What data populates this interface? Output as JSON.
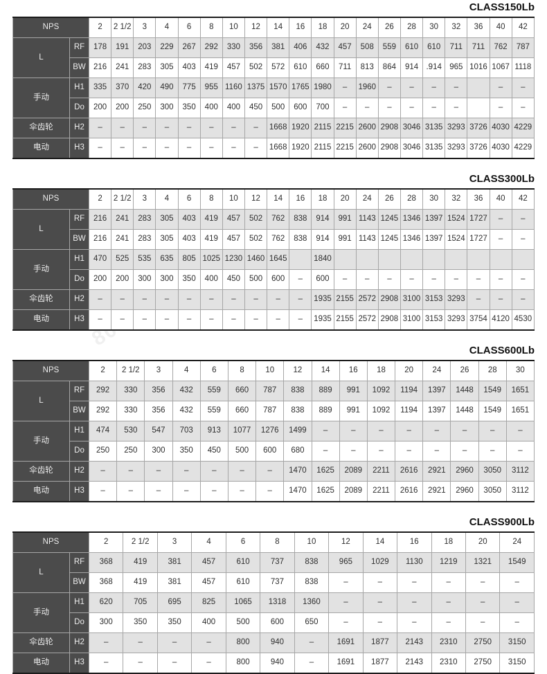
{
  "page": {
    "watermark_phone": "800-820-6570",
    "watermark_mark": "A"
  },
  "labels": {
    "corner": "NPS",
    "group_l": "L",
    "group_manual": "手动",
    "group_bevel_gear": "伞齿轮",
    "group_electric": "电动"
  },
  "colors": {
    "header_dark": "#4b4b4b",
    "row_shade": "#e2e2e2",
    "row_plain": "#ffffff",
    "border": "#a6a6a6",
    "outer_border": "#1b1b1b"
  },
  "chart_data": [
    {
      "type": "table",
      "title": "CLASS150Lb",
      "columns_nps": [
        "2",
        "2 1/2",
        "3",
        "4",
        "6",
        "8",
        "10",
        "12",
        "14",
        "16",
        "18",
        "20",
        "24",
        "26",
        "28",
        "30",
        "32",
        "36",
        "40",
        "42"
      ],
      "rows": [
        {
          "group": "L",
          "label": "RF",
          "values": [
            "178",
            "191",
            "203",
            "229",
            "267",
            "292",
            "330",
            "356",
            "381",
            "406",
            "432",
            "457",
            "508",
            "559",
            "610",
            "610",
            "711",
            "711",
            "762",
            "787"
          ]
        },
        {
          "group": "L",
          "label": "BW",
          "values": [
            "216",
            "241",
            "283",
            "305",
            "403",
            "419",
            "457",
            "502",
            "572",
            "610",
            "660",
            "711",
            "813",
            "864",
            "914",
            ".914",
            "965",
            "1016",
            "1067",
            "1118"
          ]
        },
        {
          "group": "手动",
          "label": "H1",
          "values": [
            "335",
            "370",
            "420",
            "490",
            "775",
            "955",
            "1160",
            "1375",
            "1570",
            "1765",
            "1980",
            "–",
            "1960",
            "–",
            "–",
            "–",
            "–",
            "",
            "–",
            "–"
          ]
        },
        {
          "group": "手动",
          "label": "Do",
          "values": [
            "200",
            "200",
            "250",
            "300",
            "350",
            "400",
            "400",
            "450",
            "500",
            "600",
            "700",
            "–",
            "–",
            "–",
            "–",
            "–",
            "–",
            "",
            "–",
            "–"
          ]
        },
        {
          "group": "伞齿轮",
          "label": "H2",
          "values": [
            "–",
            "–",
            "–",
            "–",
            "–",
            "–",
            "–",
            "–",
            "1668",
            "1920",
            "2115",
            "2215",
            "2600",
            "2908",
            "3046",
            "3135",
            "3293",
            "3726",
            "4030",
            "4229"
          ]
        },
        {
          "group": "电动",
          "label": "H3",
          "values": [
            "–",
            "–",
            "–",
            "–",
            "–",
            "–",
            "–",
            "–",
            "1668",
            "1920",
            "2115",
            "2215",
            "2600",
            "2908",
            "3046",
            "3135",
            "3293",
            "3726",
            "4030",
            "4229"
          ]
        }
      ]
    },
    {
      "type": "table",
      "title": "CLASS300Lb",
      "columns_nps": [
        "2",
        "2 1/2",
        "3",
        "4",
        "6",
        "8",
        "10",
        "12",
        "14",
        "16",
        "18",
        "20",
        "24",
        "26",
        "28",
        "30",
        "32",
        "36",
        "40",
        "42"
      ],
      "rows": [
        {
          "group": "L",
          "label": "RF",
          "values": [
            "216",
            "241",
            "283",
            "305",
            "403",
            "419",
            "457",
            "502",
            "762",
            "838",
            "914",
            "991",
            "1143",
            "1245",
            "1346",
            "1397",
            "1524",
            "1727",
            "–",
            "–"
          ]
        },
        {
          "group": "L",
          "label": "BW",
          "values": [
            "216",
            "241",
            "283",
            "305",
            "403",
            "419",
            "457",
            "502",
            "762",
            "838",
            "914",
            "991",
            "1143",
            "1245",
            "1346",
            "1397",
            "1524",
            "1727",
            "–",
            "–"
          ]
        },
        {
          "group": "手动",
          "label": "H1",
          "values": [
            "470",
            "525",
            "535",
            "635",
            "805",
            "1025",
            "1230",
            "1460",
            "1645",
            "",
            "1840",
            "",
            "",
            "",
            "",
            "",
            "",
            "",
            "",
            ""
          ]
        },
        {
          "group": "手动",
          "label": "Do",
          "values": [
            "200",
            "200",
            "300",
            "300",
            "350",
            "400",
            "450",
            "500",
            "600",
            "–",
            "600",
            "–",
            "–",
            "–",
            "–",
            "–",
            "–",
            "–",
            "–",
            "–"
          ]
        },
        {
          "group": "伞齿轮",
          "label": "H2",
          "values": [
            "–",
            "–",
            "–",
            "–",
            "–",
            "–",
            "–",
            "–",
            "–",
            "–",
            "1935",
            "2155",
            "2572",
            "2908",
            "3100",
            "3153",
            "3293",
            "–",
            "–",
            "–"
          ]
        },
        {
          "group": "电动",
          "label": "H3",
          "values": [
            "–",
            "–",
            "–",
            "–",
            "–",
            "–",
            "–",
            "–",
            "–",
            "–",
            "1935",
            "2155",
            "2572",
            "2908",
            "3100",
            "3153",
            "3293",
            "3754",
            "4120",
            "4530"
          ]
        }
      ]
    },
    {
      "type": "table",
      "title": "CLASS600Lb",
      "columns_nps": [
        "2",
        "2 1/2",
        "3",
        "4",
        "6",
        "8",
        "10",
        "12",
        "14",
        "16",
        "18",
        "20",
        "24",
        "26",
        "28",
        "30"
      ],
      "rows": [
        {
          "group": "L",
          "label": "RF",
          "values": [
            "292",
            "330",
            "356",
            "432",
            "559",
            "660",
            "787",
            "838",
            "889",
            "991",
            "1092",
            "1194",
            "1397",
            "1448",
            "1549",
            "1651"
          ]
        },
        {
          "group": "L",
          "label": "BW",
          "values": [
            "292",
            "330",
            "356",
            "432",
            "559",
            "660",
            "787",
            "838",
            "889",
            "991",
            "1092",
            "1194",
            "1397",
            "1448",
            "1549",
            "1651"
          ]
        },
        {
          "group": "手动",
          "label": "H1",
          "values": [
            "474",
            "530",
            "547",
            "703",
            "913",
            "1077",
            "1276",
            "1499",
            "–",
            "–",
            "–",
            "–",
            "–",
            "–",
            "–",
            "–"
          ]
        },
        {
          "group": "手动",
          "label": "Do",
          "values": [
            "250",
            "250",
            "300",
            "350",
            "450",
            "500",
            "600",
            "680",
            "–",
            "–",
            "–",
            "–",
            "–",
            "–",
            "–",
            "–"
          ]
        },
        {
          "group": "伞齿轮",
          "label": "H2",
          "values": [
            "–",
            "–",
            "–",
            "–",
            "–",
            "–",
            "–",
            "1470",
            "1625",
            "2089",
            "2211",
            "2616",
            "2921",
            "2960",
            "3050",
            "3112"
          ]
        },
        {
          "group": "电动",
          "label": "H3",
          "values": [
            "–",
            "–",
            "–",
            "–",
            "–",
            "–",
            "–",
            "1470",
            "1625",
            "2089",
            "2211",
            "2616",
            "2921",
            "2960",
            "3050",
            "3112"
          ]
        }
      ]
    },
    {
      "type": "table",
      "title": "CLASS900Lb",
      "columns_nps": [
        "2",
        "2 1/2",
        "3",
        "4",
        "6",
        "8",
        "10",
        "12",
        "14",
        "16",
        "18",
        "20",
        "24"
      ],
      "rows": [
        {
          "group": "L",
          "label": "RF",
          "values": [
            "368",
            "419",
            "381",
            "457",
            "610",
            "737",
            "838",
            "965",
            "1029",
            "1130",
            "1219",
            "1321",
            "1549"
          ]
        },
        {
          "group": "L",
          "label": "BW",
          "values": [
            "368",
            "419",
            "381",
            "457",
            "610",
            "737",
            "838",
            "–",
            "–",
            "–",
            "–",
            "–",
            "–"
          ]
        },
        {
          "group": "手动",
          "label": "H1",
          "values": [
            "620",
            "705",
            "695",
            "825",
            "1065",
            "1318",
            "1360",
            "–",
            "–",
            "–",
            "–",
            "–",
            "–"
          ]
        },
        {
          "group": "手动",
          "label": "Do",
          "values": [
            "300",
            "350",
            "350",
            "400",
            "500",
            "600",
            "650",
            "–",
            "–",
            "–",
            "–",
            "–",
            "–"
          ]
        },
        {
          "group": "伞齿轮",
          "label": "H2",
          "values": [
            "–",
            "–",
            "–",
            "–",
            "800",
            "940",
            "–",
            "1691",
            "1877",
            "2143",
            "2310",
            "2750",
            "3150"
          ]
        },
        {
          "group": "电动",
          "label": "H3",
          "values": [
            "–",
            "–",
            "–",
            "–",
            "800",
            "940",
            "–",
            "1691",
            "1877",
            "2143",
            "2310",
            "2750",
            "3150"
          ]
        }
      ]
    }
  ]
}
